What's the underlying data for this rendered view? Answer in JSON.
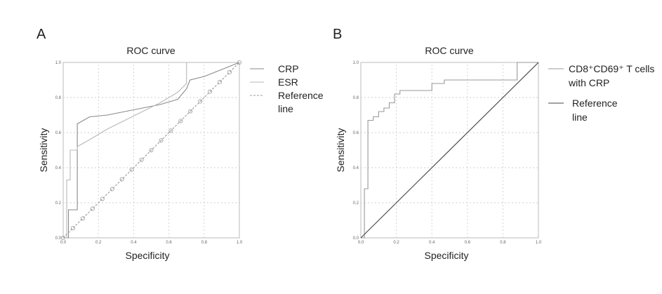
{
  "chart_data": [
    {
      "panel": "A",
      "type": "line",
      "title": "ROC curve",
      "xlabel": "Specificity",
      "ylabel": "Sensitivity",
      "xlim": [
        0,
        1
      ],
      "ylim": [
        0,
        1
      ],
      "xticks": [
        "0.0",
        "0.2",
        "0.4",
        "0.6",
        "0.8",
        "1.0"
      ],
      "yticks": [
        "0.0",
        "0.2",
        "0.4",
        "0.6",
        "0.8",
        "1.0"
      ],
      "legend": "right",
      "series": [
        {
          "name": "CRP",
          "color": "#8a8a8a",
          "dash": "",
          "x": [
            0,
            0.03,
            0.03,
            0.08,
            0.08,
            0.15,
            0.25,
            0.35,
            0.45,
            0.55,
            0.65,
            0.7,
            0.72,
            0.8,
            0.9,
            1.0
          ],
          "y": [
            0,
            0,
            0.16,
            0.16,
            0.65,
            0.69,
            0.7,
            0.72,
            0.74,
            0.76,
            0.79,
            0.85,
            0.9,
            0.92,
            0.96,
            1.0
          ]
        },
        {
          "name": "ESR",
          "color": "#b8b8b8",
          "dash": "",
          "x": [
            0,
            0.02,
            0.02,
            0.04,
            0.04,
            0.08,
            0.08,
            0.15,
            0.25,
            0.35,
            0.45,
            0.55,
            0.65,
            0.7,
            0.7,
            0.85,
            1.0
          ],
          "y": [
            0,
            0,
            0.33,
            0.33,
            0.5,
            0.5,
            0.52,
            0.56,
            0.62,
            0.67,
            0.72,
            0.77,
            0.83,
            0.88,
            1.0,
            1.0,
            1.0
          ]
        },
        {
          "name": "Reference line",
          "color": "#999999",
          "dash": "3 2",
          "markers": true,
          "x": [
            0,
            1
          ],
          "y": [
            0,
            1
          ]
        }
      ]
    },
    {
      "panel": "B",
      "type": "line",
      "title": "ROC curve",
      "xlabel": "Specificity",
      "ylabel": "Sensitivity",
      "xlim": [
        0,
        1
      ],
      "ylim": [
        0,
        1
      ],
      "xticks": [
        "0.0",
        "0.2",
        "0.4",
        "0.6",
        "0.8",
        "1.0"
      ],
      "yticks": [
        "0.0",
        "0.2",
        "0.4",
        "0.6",
        "0.8",
        "1.0"
      ],
      "legend": "right",
      "series": [
        {
          "name": "CD8⁺CD69⁺ T cells with CRP",
          "color": "#999999",
          "dash": "",
          "x": [
            0,
            0.02,
            0.02,
            0.04,
            0.04,
            0.07,
            0.07,
            0.1,
            0.1,
            0.13,
            0.13,
            0.16,
            0.16,
            0.19,
            0.19,
            0.22,
            0.22,
            0.4,
            0.4,
            0.47,
            0.47,
            0.6,
            0.6,
            0.75,
            0.75,
            0.88,
            0.88,
            1.0
          ],
          "y": [
            0,
            0,
            0.28,
            0.28,
            0.67,
            0.67,
            0.69,
            0.69,
            0.72,
            0.72,
            0.74,
            0.74,
            0.77,
            0.77,
            0.82,
            0.82,
            0.84,
            0.84,
            0.88,
            0.88,
            0.9,
            0.9,
            0.9,
            0.9,
            0.9,
            0.9,
            1.0,
            1.0
          ]
        },
        {
          "name": "Reference line",
          "color": "#444444",
          "dash": "",
          "x": [
            0,
            1
          ],
          "y": [
            0,
            1
          ]
        }
      ]
    }
  ]
}
